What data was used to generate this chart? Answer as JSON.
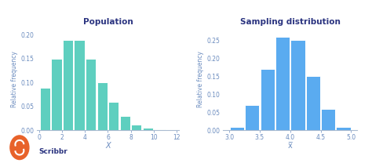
{
  "pop_bin_edges": [
    0,
    1,
    2,
    3,
    4,
    5,
    6,
    7,
    8,
    9,
    10,
    11,
    12
  ],
  "pop_values": [
    0.09,
    0.15,
    0.19,
    0.19,
    0.15,
    0.1,
    0.06,
    0.03,
    0.012,
    0.005,
    0.002,
    0.001
  ],
  "pop_color": "#5ecfbf",
  "pop_edgecolor": "#ffffff",
  "pop_title": "Population",
  "pop_xlabel": "X",
  "pop_ylabel": "Relative frequency",
  "pop_xlim": [
    -0.2,
    12.2
  ],
  "pop_ylim": [
    0,
    0.215
  ],
  "pop_xticks": [
    0,
    2,
    4,
    6,
    8,
    10,
    12
  ],
  "pop_yticks": [
    0.0,
    0.05,
    0.1,
    0.15,
    0.2
  ],
  "samp_bin_edges": [
    3.0,
    3.25,
    3.5,
    3.75,
    4.0,
    4.25,
    4.5,
    4.75,
    5.0
  ],
  "samp_values": [
    0.01,
    0.07,
    0.17,
    0.26,
    0.25,
    0.15,
    0.06,
    0.01
  ],
  "samp_color": "#5aabf0",
  "samp_edgecolor": "#ffffff",
  "samp_title": "Sampling distribution",
  "samp_xlabel": "x̅",
  "samp_ylabel": "Relative frequency",
  "samp_xlim": [
    2.9,
    5.1
  ],
  "samp_ylim": [
    0,
    0.285
  ],
  "samp_xticks": [
    3.0,
    3.5,
    4.0,
    4.5,
    5.0
  ],
  "samp_yticks": [
    0.0,
    0.05,
    0.1,
    0.15,
    0.2,
    0.25
  ],
  "title_color": "#2b3480",
  "label_color": "#6b8cbf",
  "tick_color": "#6b8cbf",
  "axis_color": "#aabbd0",
  "bg_color": "#ffffff",
  "scribbr_text": "Scribbr",
  "scribbr_color": "#e8622a"
}
